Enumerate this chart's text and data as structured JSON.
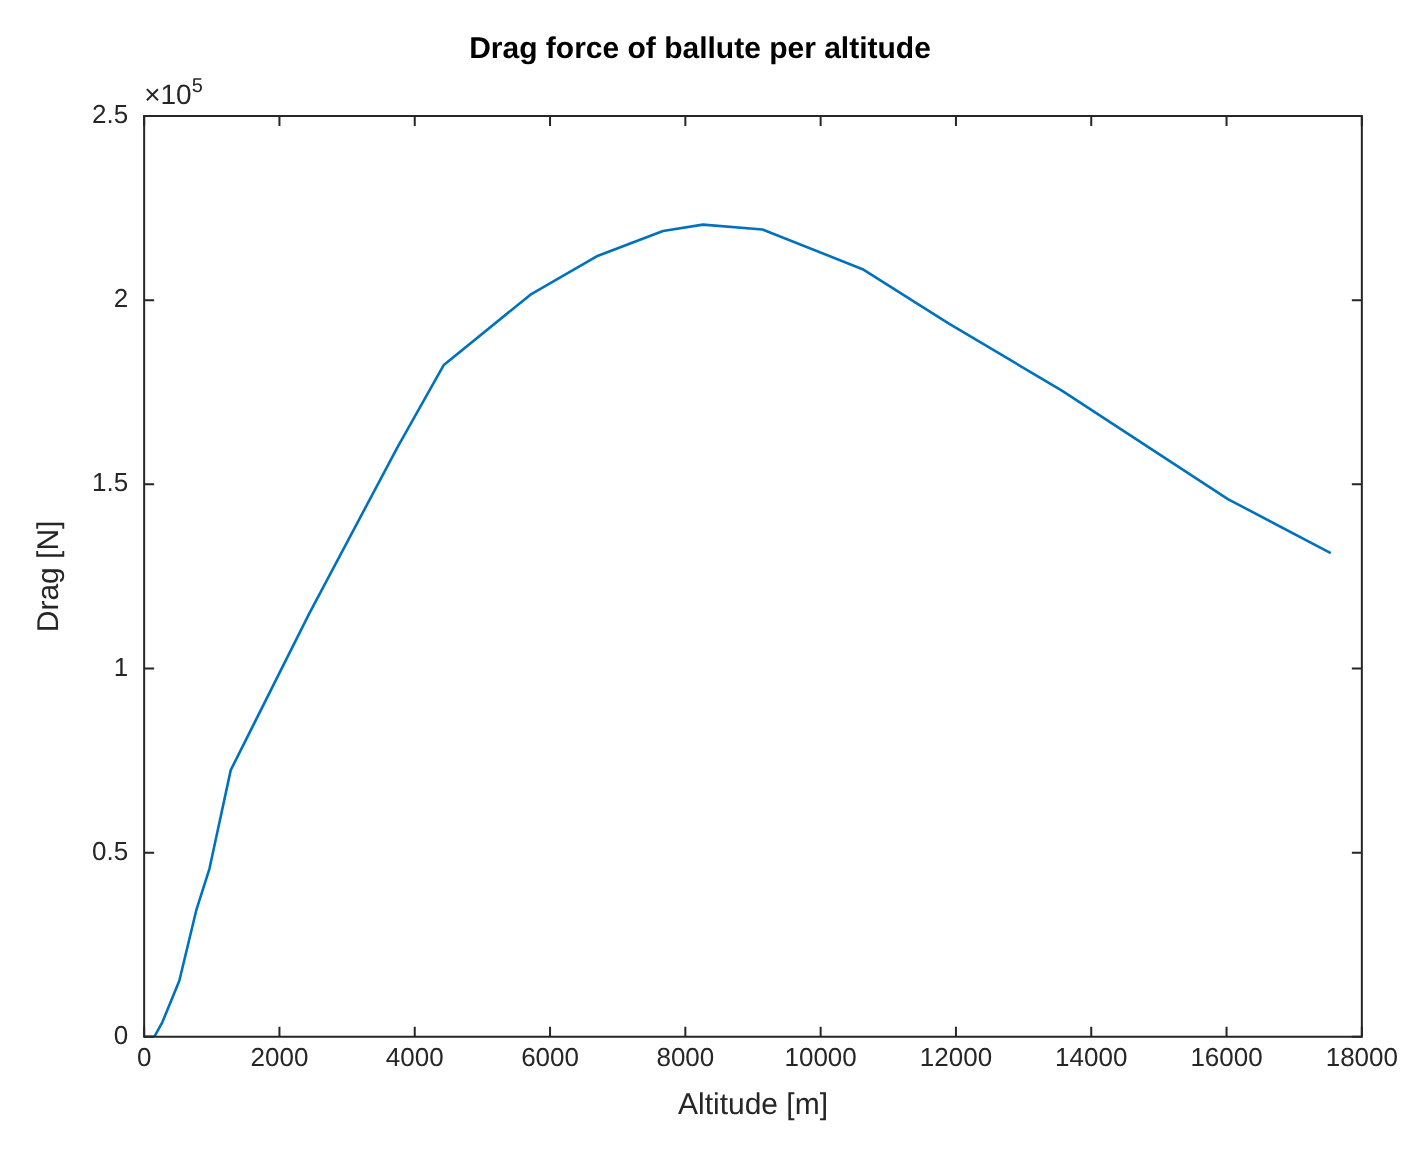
{
  "chart_data": {
    "type": "line",
    "title": "Drag force of ballute per altitude",
    "xlabel": "Altitude [m]",
    "ylabel": "Drag [N]",
    "annotations": [
      "×10$^{5}$"
    ],
    "series": [
      {
        "color": "#0072bd",
        "x": [
          0,
          150,
          270,
          520,
          770,
          965,
          1280,
          2440,
          3740,
          4430,
          5710,
          6690,
          7670,
          8260,
          9140,
          10620,
          11890,
          13560,
          16020,
          17540
        ],
        "values": [
          0,
          0,
          0.04,
          0.152,
          0.343,
          0.456,
          0.724,
          1.149,
          1.599,
          1.824,
          2.015,
          2.119,
          2.188,
          2.205,
          2.192,
          2.084,
          1.937,
          1.755,
          1.46,
          1.313
        ]
      }
    ],
    "xlim": [
      0,
      18000
    ],
    "xticks": [
      0,
      2000,
      4000,
      6000,
      8000,
      10000,
      12000,
      14000,
      16000,
      18000
    ],
    "ylim": [
      0,
      2.5
    ],
    "yticks": [
      0,
      0.5,
      1,
      1.5,
      2,
      2.5
    ],
    "grid": false,
    "legend": false,
    "marker": "none",
    "line_style": "solid"
  }
}
